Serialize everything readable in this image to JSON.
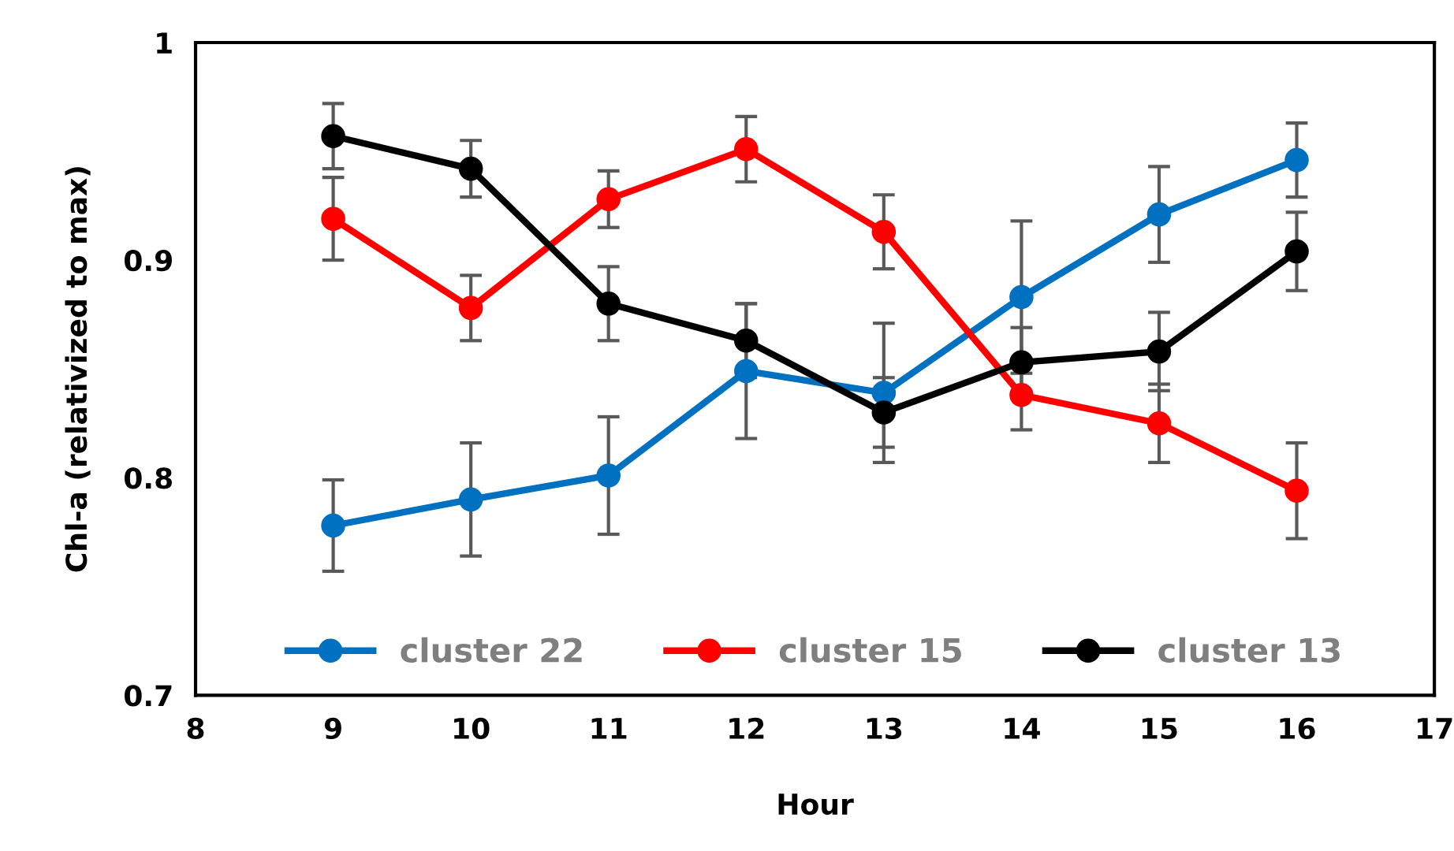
{
  "chart_data": {
    "type": "line",
    "xlabel": "Hour",
    "ylabel": "Chl-a (relativized to max)",
    "x": [
      9,
      10,
      11,
      12,
      13,
      14,
      15,
      16
    ],
    "series": [
      {
        "name": "cluster 22",
        "color": "#0070c0",
        "values": [
          0.778,
          0.79,
          0.801,
          0.849,
          0.839,
          0.883,
          0.921,
          0.946
        ],
        "errors": [
          0.021,
          0.026,
          0.027,
          0.031,
          0.032,
          0.035,
          0.022,
          0.017
        ]
      },
      {
        "name": "cluster 15",
        "color": "#ff0000",
        "values": [
          0.919,
          0.878,
          0.928,
          0.951,
          0.913,
          0.838,
          0.825,
          0.794
        ],
        "errors": [
          0.019,
          0.015,
          0.013,
          0.015,
          0.017,
          0.016,
          0.018,
          0.022
        ]
      },
      {
        "name": "cluster 13",
        "color": "#000000",
        "values": [
          0.957,
          0.942,
          0.88,
          0.863,
          0.83,
          0.853,
          0.858,
          0.904
        ],
        "errors": [
          0.015,
          0.013,
          0.017,
          0.017,
          0.016,
          0.016,
          0.018,
          0.018
        ]
      }
    ],
    "xlim": [
      8,
      17
    ],
    "xticks": [
      8,
      9,
      10,
      11,
      12,
      13,
      14,
      15,
      16,
      17
    ],
    "ylim": [
      0.7,
      1
    ],
    "yticks": [
      0.7,
      0.8,
      0.9,
      1
    ],
    "grid": false,
    "legend": "bottom",
    "marker": "circle",
    "line_style": "solid"
  }
}
